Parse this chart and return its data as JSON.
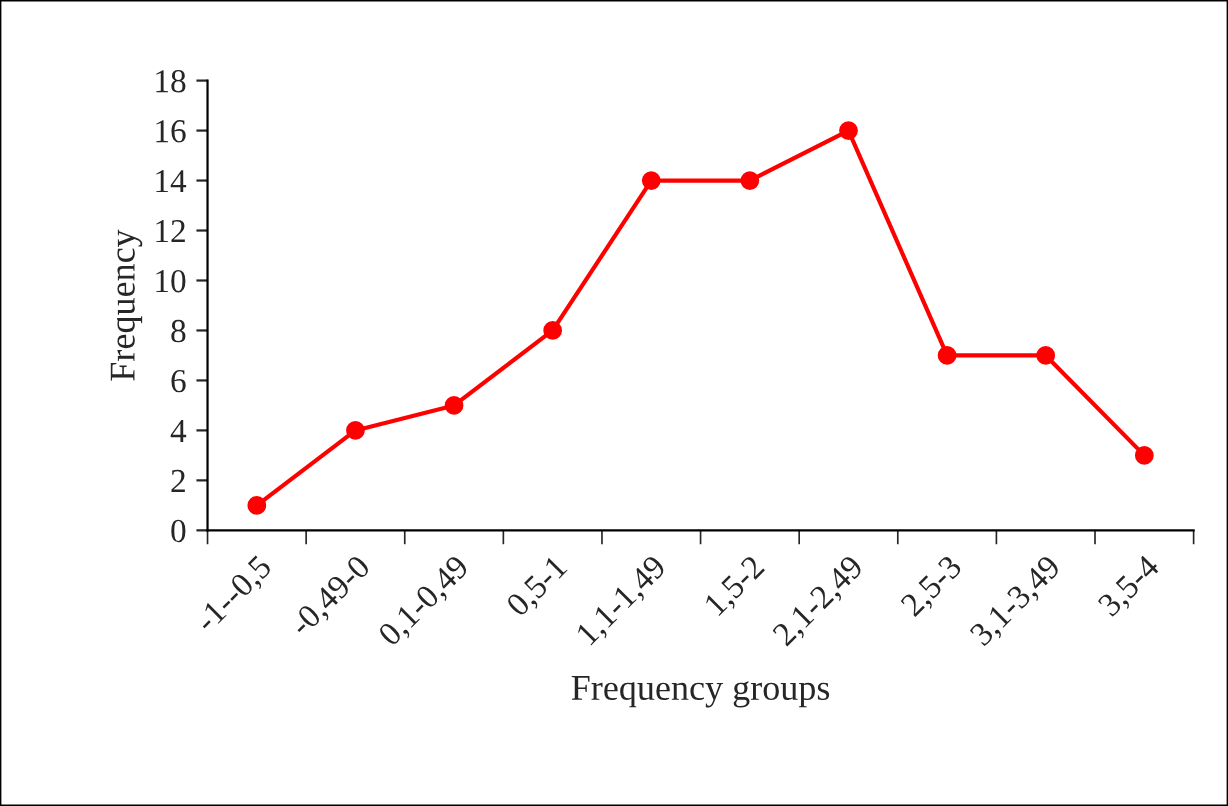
{
  "chart_data": {
    "type": "line",
    "xlabel": "Frequency groups",
    "ylabel": "Frequency",
    "categories": [
      "-1--0,5",
      "-0,49-0",
      "0,1-0,49",
      "0,5-1",
      "1,1-1,49",
      "1,5-2",
      "2,1-2,49",
      "2,5-3",
      "3,1-3,49",
      "3,5-4"
    ],
    "series": [
      {
        "color": "#ff0000",
        "values": [
          1,
          4,
          5,
          8,
          14,
          14,
          16,
          7,
          7,
          3
        ]
      }
    ],
    "ylim": [
      0,
      18
    ],
    "yticks": [
      0,
      2,
      4,
      6,
      8,
      10,
      12,
      14,
      16,
      18
    ],
    "grid": false,
    "legend": false,
    "marker": "circle",
    "line_style": "solid"
  }
}
